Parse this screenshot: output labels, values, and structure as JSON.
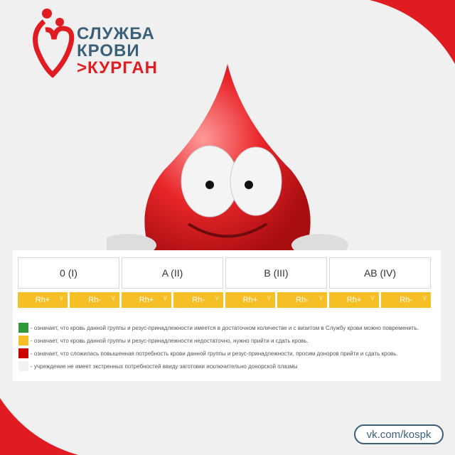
{
  "logo": {
    "line1": "СЛУЖБА",
    "line2": "КРОВИ",
    "line3": ">КУРГАН"
  },
  "groups": [
    {
      "label": "0 (I)"
    },
    {
      "label": "A (II)"
    },
    {
      "label": "B (III)"
    },
    {
      "label": "AB (IV)"
    }
  ],
  "rh": [
    "Rh+",
    "Rh-",
    "Rh+",
    "Rh-",
    "Rh+",
    "Rh-",
    "Rh+",
    "Rh-"
  ],
  "rh_color": "#f6bf26",
  "legend": [
    {
      "color": "#2e9a3a",
      "text": "- означает, что кровь данной группы и резус-принадлежности имеется в достаточном количестве и с визитом в Службу крови можно повременить."
    },
    {
      "color": "#f6bf26",
      "text": "- означает, что кровь данной группы и резус-принадлежности недостаточно, нужно прийти и сдать кровь."
    },
    {
      "color": "#cc0000",
      "text": "- означает, что сложилась повышенная потребность крови данной группы и резус-принадлежности, просим доноров прийти и сдать кровь."
    },
    {
      "color": "#f2f2f2",
      "text": "- учреждение не имеет экстренных потребностей ввиду заготовки исключительно донорской плазмы"
    }
  ],
  "footer": {
    "link": "vk.com/kospk"
  }
}
